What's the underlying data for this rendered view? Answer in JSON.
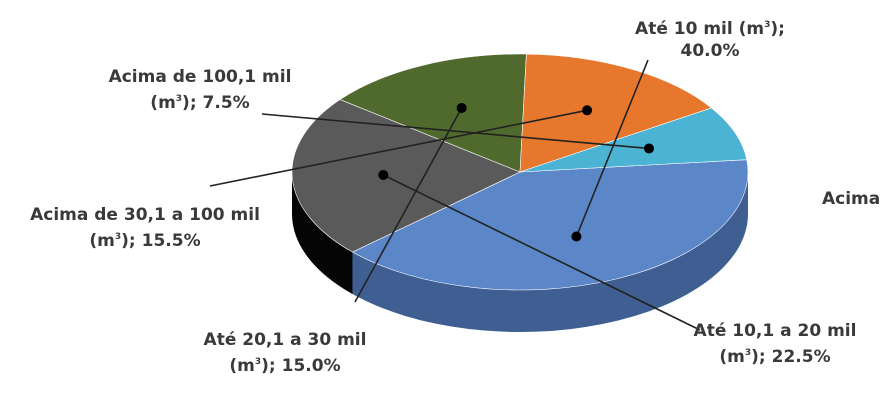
{
  "chart_data": {
    "type": "pie",
    "title": "",
    "slices": [
      {
        "label": "Até 10 mil (m³); 40.0%",
        "value": 40.0,
        "color": "#5b86c8",
        "side": "#3f5f92"
      },
      {
        "label": "Até 10,1 a 20 mil (m³); 22.5%",
        "value": 22.5,
        "color": "#5a5a5a",
        "side": "#050505"
      },
      {
        "label": "Até 20,1 a 30 mil (m³); 15.0%",
        "value": 15.0,
        "color": "#4f6a2c",
        "side": "#2f4317"
      },
      {
        "label": "Acima de 30,1 a 100 mil (m³); 15.5%",
        "value": 15.5,
        "color": "#e8772e",
        "side": "#b35717"
      },
      {
        "label": "Acima de 100,1 mil (m³); 7.5%",
        "value": 7.5,
        "color": "#4bb3d3",
        "side": "#2f8aa6"
      }
    ],
    "cropped_label_fragment": "Acima"
  },
  "labels": {
    "ate10_line1": "Até 10 mil (m",
    "ate10_sup": "3",
    "ate10_tail": ");",
    "ate10_line2": "40.0%",
    "ate20_line1": "Até 10,1 a 20 mil",
    "ate20_pre": "(m",
    "ate20_sup": "3",
    "ate20_tail": "); 22.5%",
    "ate30_line1": "Até 20,1 a 30 mil",
    "ate30_pre": "(m",
    "ate30_sup": "3",
    "ate30_tail": "); 15.0%",
    "a100_line1": "Acima de 30,1 a 100 mil",
    "a100_pre": "(m",
    "a100_sup": "3",
    "a100_tail": "); 15.5%",
    "a1001_line1": "Acima de 100,1 mil",
    "a1001_pre": "(m",
    "a1001_sup": "3",
    "a1001_tail": "); 7.5%",
    "cropped": "Acima"
  }
}
